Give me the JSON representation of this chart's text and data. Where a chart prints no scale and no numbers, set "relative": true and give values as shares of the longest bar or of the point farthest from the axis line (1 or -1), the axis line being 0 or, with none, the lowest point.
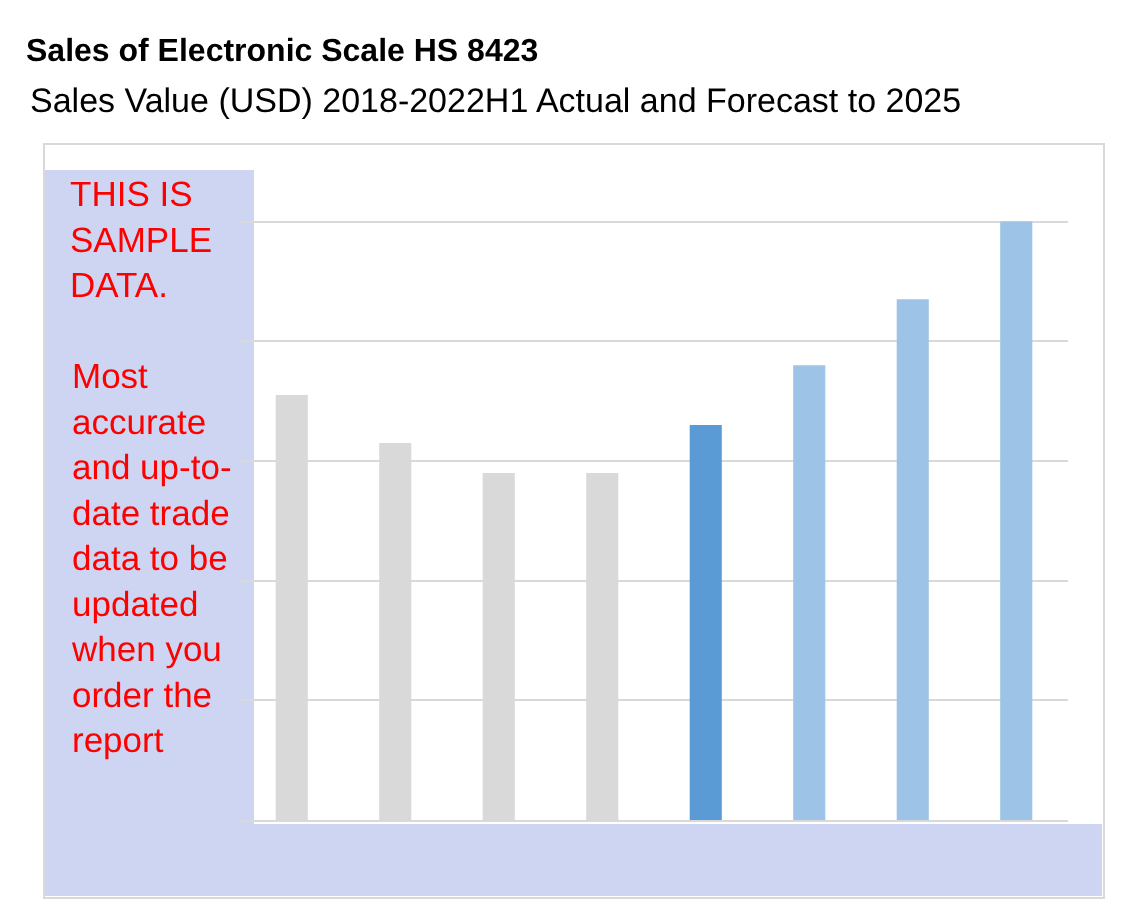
{
  "chart_data": {
    "type": "bar",
    "title": "Sales of Electronic Scale HS 8423",
    "subtitle": "Sales Value (USD) 2018-2022H1 Actual and Forecast to 2025",
    "categories": [
      null,
      null,
      null,
      null,
      null,
      null,
      null,
      null
    ],
    "values": [
      0.71,
      0.63,
      0.58,
      0.58,
      0.66,
      0.76,
      0.87,
      1
    ],
    "colors": [
      "#d9d9d9",
      "#d9d9d9",
      "#d9d9d9",
      "#d9d9d9",
      "#5b9bd5",
      "#9dc3e6",
      "#9dc3e6",
      "#9dc3e6"
    ],
    "relative": true,
    "grid": "y",
    "annotations": [
      "THIS IS SAMPLE DATA.",
      "Most accurate and up-to-date trade data to be updated when you order the report"
    ]
  }
}
